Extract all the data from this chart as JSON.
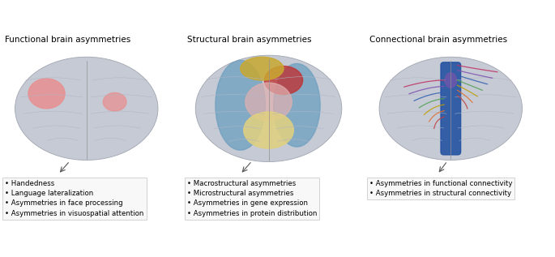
{
  "title1": "Functional brain asymmetries",
  "title2": "Structural brain asymmetries",
  "title3": "Connectional brain asymmetries",
  "bullet1": [
    "Handedness",
    "Language lateralization",
    "Asymmetries in face processing",
    "Asymmetries in visuospatial attention"
  ],
  "bullet2": [
    "Macrostructural asymmetries",
    "Microstructural asymmetries",
    "Asymmetries in gene expression",
    "Asymmetries in protein distribution"
  ],
  "bullet3": [
    "Asymmetries in functional connectivity",
    "Asymmetries in structural connectivity"
  ],
  "bg_color": "#ffffff",
  "brain_bg": "#c5cad5",
  "brain_outline": "#a0a5b0",
  "functional_pink1": "#e89090",
  "structural_blue": "#6a9ec0",
  "structural_red": "#c03030",
  "structural_yellow": "#c8a830",
  "structural_lightyellow": "#e0d080",
  "structural_pink": "#e0b0b0",
  "connectional_blue": "#2050a0",
  "title_fontsize": 7.5,
  "bullet_fontsize": 6.2,
  "box_color": "#f8f8f8",
  "box_edge": "#cccccc",
  "gyri_color": "#b0b5c2",
  "midline_color": "#909090",
  "fiber_colors": [
    "#c04040",
    "#e07030",
    "#c0a000",
    "#50a050",
    "#3060b0",
    "#8050b0",
    "#c03060"
  ]
}
